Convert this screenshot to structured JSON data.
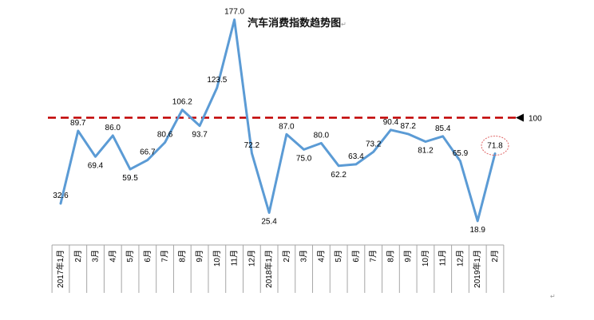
{
  "title": "汽车消费指数趋势图",
  "para_mark": "↵",
  "chart_data": {
    "type": "line",
    "title": "汽车消费指数趋势图",
    "categories": [
      "2017年1月",
      "2月",
      "3月",
      "4月",
      "5月",
      "6月",
      "7月",
      "8月",
      "9月",
      "10月",
      "11月",
      "12月",
      "2018年1月",
      "2月",
      "3月",
      "4月",
      "5月",
      "6月",
      "7月",
      "8月",
      "9月",
      "10月",
      "11月",
      "12月",
      "2019年1月",
      "2月"
    ],
    "values": [
      32.6,
      89.7,
      69.4,
      86.0,
      59.5,
      66.7,
      80.6,
      106.2,
      93.7,
      123.5,
      177.0,
      72.2,
      25.4,
      87.0,
      75.0,
      80.0,
      62.2,
      63.4,
      73.2,
      90.4,
      87.2,
      81.2,
      85.4,
      65.9,
      18.9,
      71.8
    ],
    "labels": [
      "32.6",
      "89.7",
      "69.4",
      "86.0",
      "59.5",
      "66.7",
      "80.6",
      "106.2",
      "93.7",
      "123.5",
      "177.0",
      "72.2",
      "25.4",
      "87.0",
      "75.0",
      "80.0",
      "62.2",
      "63.4",
      "73.2",
      "90.4",
      "87.2",
      "81.2",
      "85.4",
      "65.9",
      "18.9",
      "71.8"
    ],
    "ylim": [
      0,
      190
    ],
    "reference_line": {
      "value": 100,
      "label": "100",
      "color": "#c00000",
      "style": "dashed"
    },
    "highlight_index": 25,
    "line_color": "#5b9bd5",
    "grid": false,
    "legend": "none"
  }
}
